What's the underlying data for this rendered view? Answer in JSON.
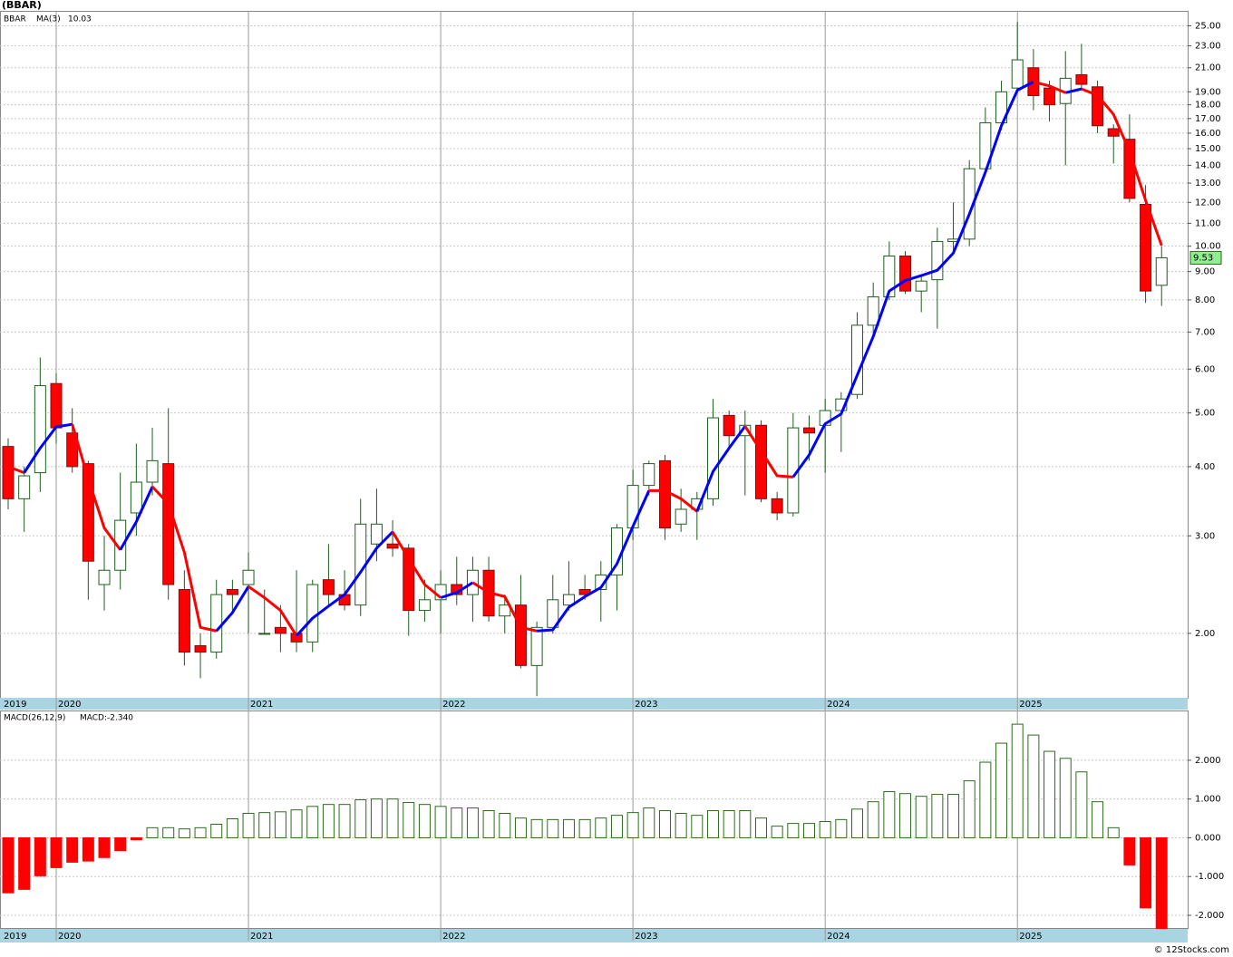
{
  "chart_data": [
    {
      "type": "candlestick",
      "title": "(BBAR)",
      "symbol": "BBAR",
      "categories": [
        "2019",
        null,
        null,
        "2020",
        null,
        null,
        null,
        null,
        null,
        null,
        null,
        null,
        null,
        null,
        null,
        "2021",
        null,
        null,
        null,
        null,
        null,
        null,
        null,
        null,
        null,
        null,
        null,
        "2022",
        null,
        null,
        null,
        null,
        null,
        null,
        null,
        null,
        null,
        null,
        null,
        "2023",
        null,
        null,
        null,
        null,
        null,
        null,
        null,
        null,
        null,
        null,
        null,
        "2024",
        null,
        null,
        null,
        null,
        null,
        null,
        null,
        null,
        null,
        null,
        null,
        "2025",
        null,
        null,
        null,
        null,
        null,
        null,
        null,
        null,
        null
      ],
      "open": [
        4.35,
        3.5,
        3.9,
        5.65,
        4.6,
        4.05,
        2.45,
        2.6,
        3.3,
        3.75,
        4.05,
        2.4,
        1.9,
        1.85,
        2.4,
        2.45,
        2.0,
        2.05,
        2.0,
        1.93,
        2.5,
        2.35,
        2.25,
        2.9,
        2.9,
        2.85,
        2.2,
        2.3,
        2.45,
        2.35,
        2.6,
        2.15,
        2.25,
        1.75,
        2.05,
        2.25,
        2.4,
        2.4,
        2.55,
        3.1,
        3.7,
        4.1,
        3.15,
        3.35,
        3.5,
        4.95,
        4.55,
        4.75,
        3.5,
        3.3,
        4.7,
        4.75,
        5.05,
        5.4,
        7.2,
        8.1,
        9.6,
        8.3,
        8.7,
        10.2,
        10.3,
        13.8,
        16.7,
        19.3,
        21.0,
        19.3,
        18.1,
        20.4,
        19.4,
        16.3,
        15.6,
        11.9,
        8.5
      ],
      "high": [
        4.5,
        4.0,
        6.3,
        5.9,
        5.1,
        4.1,
        3.0,
        3.9,
        4.4,
        4.7,
        5.1,
        2.6,
        2.0,
        2.5,
        2.5,
        2.8,
        2.4,
        2.25,
        2.6,
        2.5,
        2.9,
        2.6,
        3.5,
        3.65,
        3.2,
        2.9,
        2.5,
        2.6,
        2.75,
        2.75,
        2.75,
        2.35,
        2.55,
        2.1,
        2.55,
        2.7,
        2.55,
        2.7,
        3.15,
        3.95,
        4.1,
        4.2,
        3.65,
        3.6,
        5.3,
        5.05,
        5.05,
        4.85,
        3.6,
        5.0,
        4.95,
        5.3,
        5.45,
        7.6,
        8.6,
        10.2,
        9.8,
        8.9,
        10.8,
        12.0,
        14.3,
        17.8,
        19.9,
        25.4,
        22.7,
        19.9,
        22.5,
        23.2,
        19.9,
        16.6,
        17.3,
        12.9,
        10.0
      ],
      "low": [
        3.35,
        3.05,
        3.6,
        4.4,
        3.9,
        2.3,
        2.2,
        2.4,
        3.0,
        3.55,
        2.3,
        1.75,
        1.66,
        1.8,
        2.2,
        2.0,
        2.0,
        1.85,
        1.85,
        1.85,
        2.25,
        2.2,
        2.15,
        2.7,
        2.75,
        1.98,
        2.1,
        2.0,
        2.25,
        2.1,
        2.1,
        2.0,
        1.73,
        1.54,
        2.0,
        2.2,
        2.3,
        2.1,
        2.2,
        2.95,
        3.55,
        2.95,
        3.05,
        2.95,
        3.4,
        4.35,
        3.55,
        3.45,
        3.2,
        3.25,
        4.1,
        3.9,
        4.25,
        5.3,
        6.9,
        8.0,
        8.2,
        7.6,
        7.1,
        9.8,
        10.0,
        13.5,
        16.2,
        19.0,
        17.6,
        16.8,
        14.0,
        19.1,
        16.0,
        14.1,
        12.0,
        7.9,
        7.8
      ],
      "close": [
        3.5,
        3.85,
        5.6,
        4.7,
        4.0,
        2.7,
        2.6,
        3.2,
        3.75,
        4.1,
        2.45,
        1.85,
        1.85,
        2.35,
        2.35,
        2.6,
        2.0,
        2.0,
        1.93,
        2.45,
        2.35,
        2.25,
        3.15,
        3.15,
        2.85,
        2.2,
        2.3,
        2.45,
        2.35,
        2.6,
        2.15,
        2.25,
        1.75,
        2.05,
        2.3,
        2.35,
        2.35,
        2.55,
        3.1,
        3.7,
        4.05,
        3.1,
        3.35,
        3.5,
        4.9,
        4.55,
        4.75,
        3.5,
        3.3,
        4.7,
        4.6,
        5.05,
        5.3,
        7.2,
        8.1,
        9.6,
        8.3,
        8.65,
        10.2,
        10.3,
        13.8,
        16.7,
        19.0,
        21.7,
        18.7,
        18.0,
        20.1,
        19.6,
        16.5,
        15.8,
        12.2,
        8.3,
        9.53
      ],
      "up_color": "#ffffff",
      "down_color": "#ff0000",
      "outline_color": "#1f5e1f",
      "symbol_color": "#008000",
      "ma": {
        "name": "MA(3)",
        "rising_color": "#0000ff",
        "falling_color": "#ff0000",
        "values": [
          4.0,
          3.9,
          4.32,
          4.72,
          4.77,
          3.8,
          3.1,
          2.83,
          3.18,
          3.68,
          3.43,
          2.8,
          2.05,
          2.02,
          2.18,
          2.43,
          2.32,
          2.2,
          1.98,
          2.13,
          2.24,
          2.35,
          2.58,
          2.85,
          3.05,
          2.73,
          2.45,
          2.32,
          2.37,
          2.47,
          2.37,
          2.33,
          2.05,
          2.02,
          2.03,
          2.23,
          2.33,
          2.42,
          2.67,
          3.12,
          3.62,
          3.62,
          3.5,
          3.32,
          3.92,
          4.32,
          4.73,
          4.27,
          3.85,
          3.83,
          4.2,
          4.78,
          4.98,
          5.85,
          6.87,
          8.3,
          8.67,
          8.85,
          9.05,
          9.72,
          11.43,
          13.6,
          16.5,
          19.13,
          19.8,
          19.47,
          18.93,
          19.23,
          18.73,
          17.3,
          14.83,
          12.1,
          10.03
        ]
      },
      "last_price_color": "#90ee90",
      "log_scale": true,
      "ylim": [
        1.53,
        26.4
      ],
      "yticks": [
        {
          "value": 2,
          "label": "2.00"
        },
        {
          "value": 3,
          "label": "3.00"
        },
        {
          "value": 4,
          "label": "4.00"
        },
        {
          "value": 5,
          "label": "5.00"
        },
        {
          "value": 6,
          "label": "6.00"
        },
        {
          "value": 7,
          "label": "7.00"
        },
        {
          "value": 8,
          "label": "8.00"
        },
        {
          "value": 9,
          "label": "9.00"
        },
        {
          "value": 10,
          "label": "10.00"
        },
        {
          "value": 11,
          "label": "11.00"
        },
        {
          "value": 12,
          "label": "12.00"
        },
        {
          "value": 13,
          "label": "13.00"
        },
        {
          "value": 14,
          "label": "14.00"
        },
        {
          "value": 15,
          "label": "15.00"
        },
        {
          "value": 16,
          "label": "16.00"
        },
        {
          "value": 17,
          "label": "17.00"
        },
        {
          "value": 18,
          "label": "18.00"
        },
        {
          "value": 19,
          "label": "19.00"
        },
        {
          "value": 21,
          "label": "21.00"
        },
        {
          "value": 23,
          "label": "23.00"
        },
        {
          "value": 25,
          "label": "25.00"
        }
      ],
      "grid": true
    },
    {
      "type": "bar",
      "title": "MACD(26,12,9)",
      "value_text": "MACD:-2.340",
      "categories": [
        "2019",
        null,
        null,
        "2020",
        null,
        null,
        null,
        null,
        null,
        null,
        null,
        null,
        null,
        null,
        null,
        "2021",
        null,
        null,
        null,
        null,
        null,
        null,
        null,
        null,
        null,
        null,
        null,
        "2022",
        null,
        null,
        null,
        null,
        null,
        null,
        null,
        null,
        null,
        null,
        null,
        "2023",
        null,
        null,
        null,
        null,
        null,
        null,
        null,
        null,
        null,
        null,
        null,
        "2024",
        null,
        null,
        null,
        null,
        null,
        null,
        null,
        null,
        null,
        null,
        null,
        "2025",
        null,
        null,
        null,
        null,
        null,
        null,
        null,
        null,
        null
      ],
      "values": [
        -1.42,
        -1.33,
        -0.98,
        -0.77,
        -0.63,
        -0.6,
        -0.51,
        -0.33,
        -0.05,
        0.26,
        0.26,
        0.23,
        0.26,
        0.35,
        0.49,
        0.63,
        0.65,
        0.67,
        0.72,
        0.81,
        0.86,
        0.86,
        0.98,
        1.0,
        1.0,
        0.91,
        0.86,
        0.81,
        0.77,
        0.77,
        0.7,
        0.63,
        0.51,
        0.47,
        0.47,
        0.47,
        0.47,
        0.51,
        0.58,
        0.65,
        0.77,
        0.7,
        0.63,
        0.58,
        0.7,
        0.7,
        0.7,
        0.51,
        0.3,
        0.37,
        0.37,
        0.42,
        0.47,
        0.74,
        0.93,
        1.19,
        1.14,
        1.07,
        1.12,
        1.12,
        1.47,
        1.95,
        2.44,
        2.93,
        2.65,
        2.23,
        2.05,
        1.7,
        0.93,
        0.26,
        -0.7,
        -1.81,
        -2.34
      ],
      "positive_color": "#ffffff",
      "positive_outline": "#2e6b1f",
      "negative_color": "#ff0000",
      "title_color": "#0000cc",
      "ylim": [
        -2.35,
        3.26
      ],
      "yticks": [
        {
          "value": -2,
          "label": "-2.000"
        },
        {
          "value": -1,
          "label": "-1.000"
        },
        {
          "value": 0,
          "label": "0.000"
        },
        {
          "value": 1,
          "label": "1.000"
        },
        {
          "value": 2,
          "label": "2.000"
        }
      ],
      "grid": true
    }
  ],
  "footer": "© 12Stocks.com"
}
